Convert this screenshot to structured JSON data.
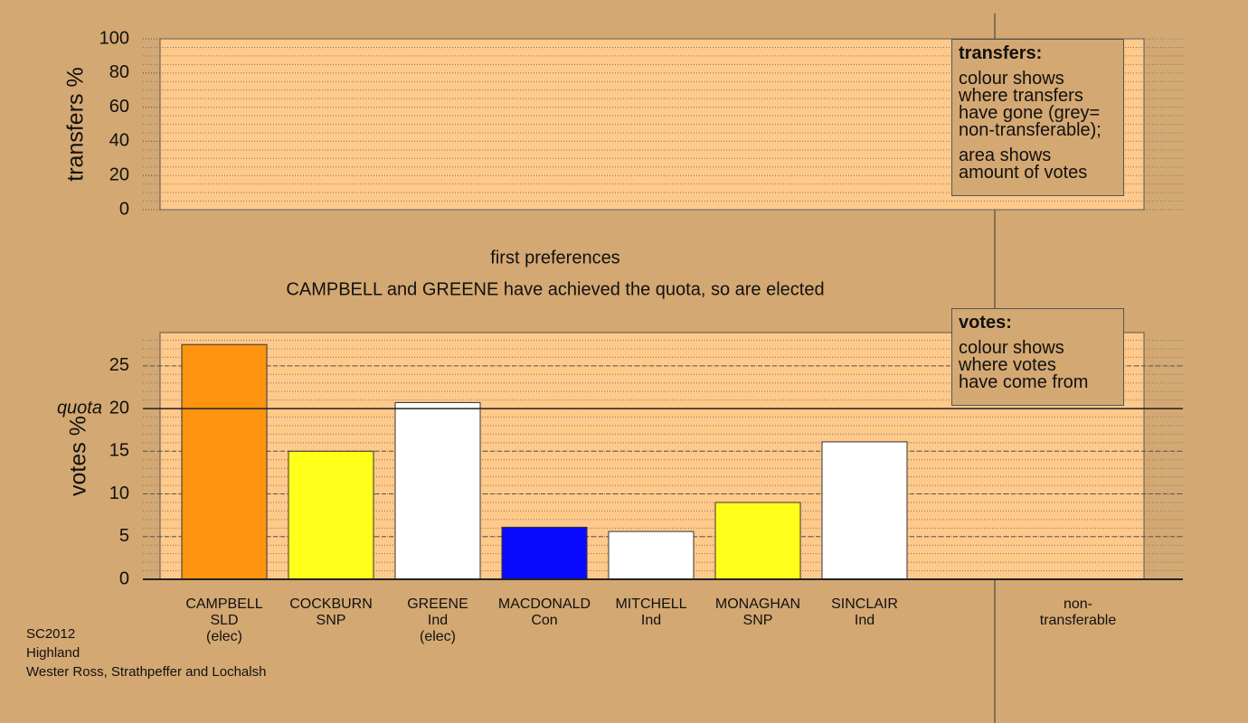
{
  "chart_data": [
    {
      "type": "bar",
      "y_label": "transfers %",
      "categories": [],
      "values": [],
      "ylim": [
        0,
        100
      ],
      "yticks": [
        0,
        20,
        40,
        60,
        80,
        100
      ],
      "minor_grid_step": 5,
      "grid": true,
      "legend": {
        "title": "transfers:",
        "paragraphs": [
          "colour shows\nwhere transfers\nhave gone (grey=\nnon-transferable);",
          "area shows\namount of votes"
        ]
      }
    },
    {
      "type": "bar",
      "title": "first preferences",
      "subtitle": "CAMPBELL and GREENE have achieved the quota, so are elected",
      "y_label": "votes %",
      "categories": [
        "CAMPBELL\nSLD\n(elec)",
        "COCKBURN\nSNP",
        "GREENE\nInd\n(elec)",
        "MACDONALD\nCon",
        "MITCHELL\nInd",
        "MONAGHAN\nSNP",
        "SINCLAIR\nInd",
        null,
        "non-\ntransferable"
      ],
      "values": [
        27.5,
        15.0,
        20.7,
        6.1,
        5.6,
        9.0,
        16.1,
        null,
        0
      ],
      "colors": [
        "#ff9410",
        "#ffff1a",
        "#ffffff",
        "#0a0aff",
        "#ffffff",
        "#ffff1a",
        "#ffffff",
        null,
        "#aaaaaa"
      ],
      "ylim": [
        0,
        28.9
      ],
      "yticks": [
        0,
        5,
        10,
        15,
        20,
        25
      ],
      "minor_grid_step": 1,
      "grid": true,
      "quota": 20,
      "quota_label": "quota",
      "legend": {
        "title": "votes:",
        "paragraphs": [
          "colour shows\nwhere votes\nhave come from"
        ]
      }
    }
  ],
  "footer": [
    "SC2012",
    "Highland",
    "Wester Ross, Strathpeffer and Lochalsh"
  ]
}
